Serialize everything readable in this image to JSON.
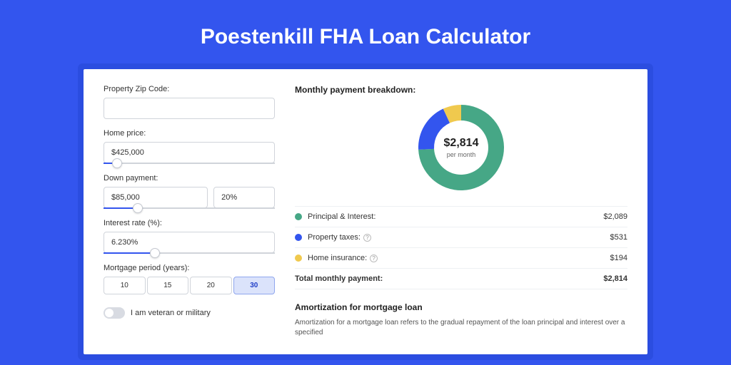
{
  "title": "Poestenkill FHA Loan Calculator",
  "colors": {
    "page_bg": "#3355ee",
    "panel_bg": "#ffffff",
    "border": "#d0d4da",
    "slider_fill": "#3355ee",
    "period_active_bg": "#dbe3fb",
    "text": "#222222"
  },
  "form": {
    "zip": {
      "label": "Property Zip Code:",
      "value": ""
    },
    "home_price": {
      "label": "Home price:",
      "value": "$425,000",
      "slider_pct": 8
    },
    "down_payment": {
      "label": "Down payment:",
      "value": "$85,000",
      "pct_value": "20%",
      "slider_pct": 20
    },
    "interest": {
      "label": "Interest rate (%):",
      "value": "6.230%",
      "slider_pct": 30
    },
    "period": {
      "label": "Mortgage period (years):",
      "options": [
        "10",
        "15",
        "20",
        "30"
      ],
      "active": "30"
    },
    "veteran": {
      "label": "I am veteran or military",
      "checked": false
    }
  },
  "breakdown": {
    "heading": "Monthly payment breakdown:",
    "donut": {
      "amount": "$2,814",
      "sub": "per month",
      "slices": [
        {
          "key": "principal_interest",
          "value": 2089,
          "color": "#46a786"
        },
        {
          "key": "property_taxes",
          "value": 531,
          "color": "#3355ee"
        },
        {
          "key": "home_insurance",
          "value": 194,
          "color": "#f0c94e"
        }
      ],
      "size": 128,
      "thickness": 22
    },
    "rows": [
      {
        "label": "Principal & Interest:",
        "value": "$2,089",
        "color": "#46a786",
        "tooltip": false
      },
      {
        "label": "Property taxes:",
        "value": "$531",
        "color": "#3355ee",
        "tooltip": true
      },
      {
        "label": "Home insurance:",
        "value": "$194",
        "color": "#f0c94e",
        "tooltip": true
      }
    ],
    "total": {
      "label": "Total monthly payment:",
      "value": "$2,814"
    }
  },
  "amortization": {
    "heading": "Amortization for mortgage loan",
    "desc": "Amortization for a mortgage loan refers to the gradual repayment of the loan principal and interest over a specified"
  }
}
